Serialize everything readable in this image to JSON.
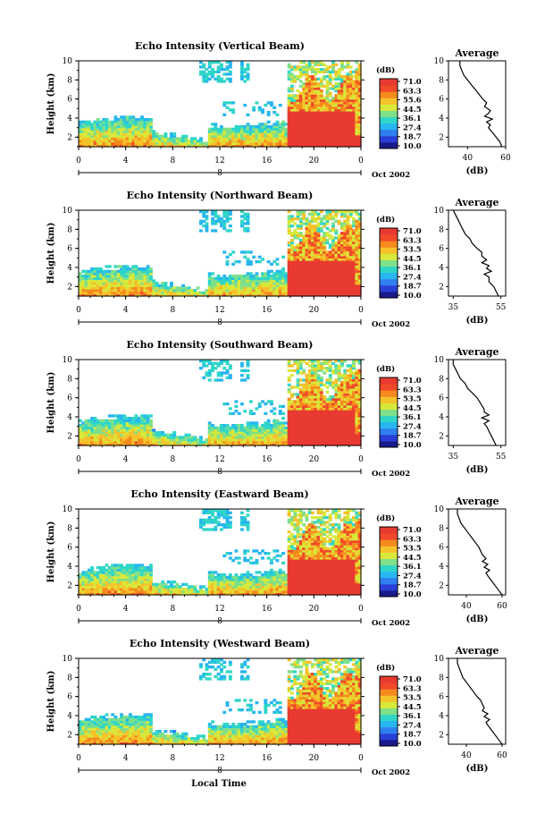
{
  "x_axis_title": "Local Time",
  "date_label": "Oct 2002",
  "day_label": "8",
  "colorbar_unit": "(dB)",
  "avg_axis_unit": "(dB)",
  "colors": {
    "scale": [
      "#1a1a8c",
      "#2a3fd6",
      "#2f7ff0",
      "#27b6f0",
      "#2fd6c8",
      "#7fe08a",
      "#d8e83a",
      "#f5c22a",
      "#f58a1e",
      "#f04a2a",
      "#e83a30"
    ]
  },
  "chart_data": [
    {
      "type": "heatmap",
      "title": "Echo Intensity (Vertical Beam)",
      "ylabel": "Height (km)",
      "xlabel": "Local Time",
      "x_ticks": [
        "0",
        "4",
        "8",
        "12",
        "16",
        "20",
        "0"
      ],
      "y_ticks": [
        "2",
        "4",
        "6",
        "8",
        "10"
      ],
      "xlim": [
        0,
        24
      ],
      "ylim": [
        1,
        10
      ],
      "colorbar": {
        "label": "(dB)",
        "ticks": [
          "71.0",
          "63.3",
          "55.6",
          "44.5",
          "36.1",
          "27.4",
          "18.7",
          "10.0"
        ]
      },
      "profile": {
        "title": "Average",
        "xlabel": "(dB)",
        "x_ticks": [
          "40",
          "60"
        ],
        "xlim": [
          30,
          60
        ],
        "y_ticks": [
          "2",
          "4",
          "6",
          "8",
          "10"
        ],
        "height": [
          1.0,
          1.5,
          2.0,
          2.5,
          3.0,
          3.3,
          3.6,
          3.9,
          4.2,
          4.5,
          4.8,
          5.2,
          5.6,
          6.0,
          6.5,
          7.0,
          7.5,
          8.0,
          8.5,
          9.0,
          9.5,
          10.0
        ],
        "db": [
          58,
          57,
          55,
          53,
          51,
          52,
          50,
          53,
          49,
          51,
          52,
          49,
          50,
          48,
          46,
          44,
          42,
          40,
          38,
          37,
          36,
          36
        ]
      }
    },
    {
      "type": "heatmap",
      "title": "Echo Intensity (Northward Beam)",
      "ylabel": "Height (km)",
      "xlabel": "Local Time",
      "x_ticks": [
        "0",
        "4",
        "8",
        "12",
        "16",
        "20",
        "0"
      ],
      "y_ticks": [
        "2",
        "4",
        "6",
        "8",
        "10"
      ],
      "xlim": [
        0,
        24
      ],
      "ylim": [
        1,
        10
      ],
      "colorbar": {
        "label": "(dB)",
        "ticks": [
          "71.0",
          "63.3",
          "53.5",
          "44.5",
          "36.1",
          "27.4",
          "18.7",
          "10.0"
        ]
      },
      "profile": {
        "title": "Average",
        "xlabel": "(dB)",
        "x_ticks": [
          "35",
          "55"
        ],
        "xlim": [
          33,
          57
        ],
        "y_ticks": [
          "2",
          "4",
          "6",
          "8",
          "10"
        ],
        "height": [
          1.0,
          1.5,
          2.0,
          2.5,
          3.0,
          3.3,
          3.6,
          3.9,
          4.2,
          4.5,
          4.8,
          5.2,
          5.6,
          6.0,
          6.5,
          7.0,
          7.5,
          8.0,
          8.5,
          9.0,
          9.5,
          10.0
        ],
        "db": [
          54,
          53,
          52,
          50,
          50,
          48,
          51,
          49,
          50,
          47,
          49,
          47,
          47,
          45,
          43,
          42,
          40,
          39,
          38,
          37,
          36,
          35
        ]
      }
    },
    {
      "type": "heatmap",
      "title": "Echo Intensity (Southward Beam)",
      "ylabel": "Height (km)",
      "xlabel": "Local Time",
      "x_ticks": [
        "0",
        "4",
        "8",
        "12",
        "16",
        "20",
        "0"
      ],
      "y_ticks": [
        "2",
        "4",
        "6",
        "8",
        "10"
      ],
      "xlim": [
        0,
        24
      ],
      "ylim": [
        1,
        10
      ],
      "colorbar": {
        "label": "(dB)",
        "ticks": [
          "71.0",
          "63.3",
          "53.5",
          "44.5",
          "36.1",
          "27.4",
          "18.7",
          "10.0"
        ]
      },
      "profile": {
        "title": "Average",
        "xlabel": "(dB)",
        "x_ticks": [
          "35",
          "55"
        ],
        "xlim": [
          33,
          57
        ],
        "y_ticks": [
          "2",
          "4",
          "6",
          "8",
          "10"
        ],
        "height": [
          1.0,
          1.5,
          2.0,
          2.5,
          3.0,
          3.3,
          3.6,
          3.9,
          4.2,
          4.5,
          4.8,
          5.2,
          5.6,
          6.0,
          6.5,
          7.0,
          7.5,
          8.0,
          8.5,
          9.0,
          9.5,
          10.0
        ],
        "db": [
          53,
          52,
          51,
          50,
          49,
          48,
          50,
          47,
          50,
          48,
          48,
          47,
          46,
          45,
          43,
          41,
          40,
          38,
          37,
          36,
          35,
          35
        ]
      }
    },
    {
      "type": "heatmap",
      "title": "Echo Intensity (Eastward Beam)",
      "ylabel": "Height (km)",
      "xlabel": "Local Time",
      "x_ticks": [
        "0",
        "4",
        "8",
        "12",
        "16",
        "20",
        "0"
      ],
      "y_ticks": [
        "2",
        "4",
        "6",
        "8",
        "10"
      ],
      "xlim": [
        0,
        24
      ],
      "ylim": [
        1,
        10
      ],
      "colorbar": {
        "label": "(dB)",
        "ticks": [
          "71.0",
          "63.3",
          "53.5",
          "44.5",
          "36.1",
          "27.4",
          "18.7",
          "10.0"
        ]
      },
      "profile": {
        "title": "Average",
        "xlabel": "(dB)",
        "x_ticks": [
          "40",
          "60"
        ],
        "xlim": [
          30,
          62
        ],
        "y_ticks": [
          "2",
          "4",
          "6",
          "8",
          "10"
        ],
        "height": [
          1.0,
          1.5,
          2.0,
          2.5,
          3.0,
          3.3,
          3.6,
          3.9,
          4.2,
          4.5,
          4.8,
          5.2,
          5.6,
          6.0,
          6.5,
          7.0,
          7.5,
          8.0,
          8.5,
          9.0,
          9.5,
          10.0
        ],
        "db": [
          60,
          58,
          56,
          54,
          52,
          51,
          53,
          50,
          52,
          49,
          51,
          49,
          48,
          47,
          45,
          43,
          41,
          39,
          37,
          36,
          35,
          35
        ]
      }
    },
    {
      "type": "heatmap",
      "title": "Echo Intensity (Westward Beam)",
      "ylabel": "Height (km)",
      "xlabel": "Local Time",
      "x_ticks": [
        "0",
        "4",
        "8",
        "12",
        "16",
        "20",
        "0"
      ],
      "y_ticks": [
        "2",
        "4",
        "6",
        "8",
        "10"
      ],
      "xlim": [
        0,
        24
      ],
      "ylim": [
        1,
        10
      ],
      "colorbar": {
        "label": "(dB)",
        "ticks": [
          "71.0",
          "63.3",
          "53.5",
          "44.5",
          "36.1",
          "27.4",
          "18.7",
          "10.0"
        ]
      },
      "profile": {
        "title": "Average",
        "xlabel": "(dB)",
        "x_ticks": [
          "40",
          "60"
        ],
        "xlim": [
          30,
          62
        ],
        "y_ticks": [
          "2",
          "4",
          "6",
          "8",
          "10"
        ],
        "height": [
          1.0,
          1.5,
          2.0,
          2.5,
          3.0,
          3.3,
          3.6,
          3.9,
          4.2,
          4.5,
          4.8,
          5.2,
          5.6,
          6.0,
          6.5,
          7.0,
          7.5,
          8.0,
          8.5,
          9.0,
          9.5,
          10.0
        ],
        "db": [
          60,
          58,
          56,
          54,
          52,
          51,
          53,
          50,
          52,
          49,
          50,
          49,
          48,
          46,
          44,
          42,
          40,
          38,
          37,
          36,
          35,
          35
        ]
      }
    }
  ]
}
